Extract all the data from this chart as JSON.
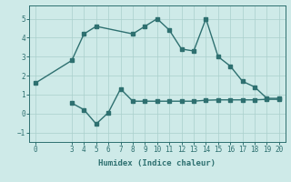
{
  "xlabel": "Humidex (Indice chaleur)",
  "l1x": [
    0,
    3,
    4,
    5,
    8,
    9,
    10,
    11,
    12,
    13,
    14,
    15,
    16,
    17,
    18,
    19,
    20
  ],
  "l1y": [
    1.6,
    2.8,
    4.2,
    4.6,
    4.2,
    4.6,
    5.0,
    4.4,
    3.4,
    3.3,
    5.0,
    3.0,
    2.5,
    1.7,
    1.4,
    0.8,
    0.8
  ],
  "l2x": [
    3,
    4,
    5,
    6,
    7,
    8,
    9,
    10,
    11,
    12,
    13,
    14,
    15,
    16,
    17,
    18,
    19,
    20
  ],
  "l2y": [
    0.55,
    0.2,
    -0.55,
    0.05,
    1.3,
    0.65,
    0.65,
    0.65,
    0.65,
    0.65,
    0.65,
    0.7,
    0.72,
    0.72,
    0.72,
    0.72,
    0.75,
    0.75
  ],
  "color": "#2e7070",
  "bg_color": "#ceeae8",
  "grid_color": "#aacfcc",
  "xlim": [
    -0.5,
    20.5
  ],
  "ylim": [
    -1.5,
    5.7
  ],
  "yticks": [
    -1,
    0,
    1,
    2,
    3,
    4,
    5
  ],
  "xticks": [
    0,
    3,
    4,
    5,
    6,
    7,
    8,
    9,
    10,
    11,
    12,
    13,
    14,
    15,
    16,
    17,
    18,
    19,
    20
  ]
}
